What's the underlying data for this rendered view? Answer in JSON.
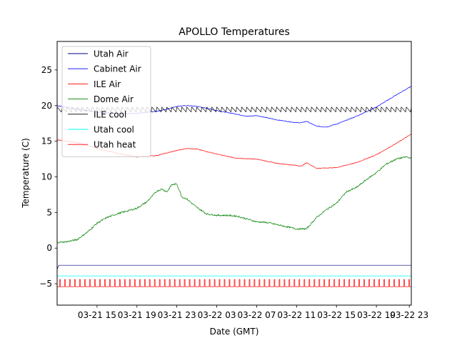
{
  "chart_data": {
    "type": "line",
    "title": "APOLLO Temperatures",
    "xlabel": "Date (GMT)",
    "ylabel": "Temperature (C)",
    "xlim": [
      0,
      35.5
    ],
    "ylim": [
      -8,
      29
    ],
    "x_unit": "hours since 03-21 11:00 GMT",
    "xticks": [
      {
        "value": 4,
        "label": "03-21 15"
      },
      {
        "value": 8,
        "label": "03-21 19"
      },
      {
        "value": 12,
        "label": "03-21 23"
      },
      {
        "value": 16,
        "label": "03-22 03"
      },
      {
        "value": 20,
        "label": "03-22 07"
      },
      {
        "value": 24,
        "label": "03-22 11"
      },
      {
        "value": 28,
        "label": "03-22 15"
      },
      {
        "value": 32,
        "label": "03-22 19"
      },
      {
        "value": 35.3,
        "label": "03-22 23"
      }
    ],
    "yticks": [
      {
        "value": -5,
        "label": "−5"
      },
      {
        "value": 0,
        "label": "0"
      },
      {
        "value": 5,
        "label": "5"
      },
      {
        "value": 10,
        "label": "10"
      },
      {
        "value": 15,
        "label": "15"
      },
      {
        "value": 20,
        "label": "20"
      },
      {
        "value": 25,
        "label": "25"
      }
    ],
    "legend_position": "top-left",
    "series": [
      {
        "name": "Utah Air",
        "color": "#000080",
        "x": [
          0,
          0.1,
          0.2,
          0.4,
          35.5
        ],
        "y": [
          -3.0,
          -2.6,
          -2.4,
          -2.4,
          -2.4
        ]
      },
      {
        "name": "Cabinet Air",
        "color": "#0000ff",
        "x": [
          0,
          2,
          4,
          6,
          8,
          10,
          11,
          12,
          13,
          14,
          16,
          18,
          19,
          20,
          22,
          24,
          24.5,
          25,
          26,
          27,
          28,
          30,
          32,
          34,
          35.5
        ],
        "y": [
          20.0,
          19.5,
          19.1,
          18.9,
          18.9,
          19.2,
          19.5,
          19.9,
          20.0,
          19.9,
          19.3,
          18.8,
          18.5,
          18.6,
          18.0,
          17.6,
          17.6,
          17.8,
          17.1,
          17.0,
          17.4,
          18.5,
          19.8,
          21.5,
          22.7
        ]
      },
      {
        "name": "ILE Air",
        "color": "#ff0000",
        "x": [
          0,
          2,
          4,
          6,
          8,
          10,
          12,
          13,
          14,
          16,
          18,
          20,
          22,
          24,
          24.5,
          25,
          26,
          28,
          30,
          32,
          34,
          35.5
        ],
        "y": [
          15.2,
          14.8,
          14.0,
          13.3,
          12.8,
          13.0,
          13.7,
          14.0,
          13.9,
          13.2,
          12.6,
          12.5,
          11.9,
          11.6,
          11.5,
          12.0,
          11.2,
          11.3,
          12.0,
          13.1,
          14.7,
          16.0
        ]
      },
      {
        "name": "Dome Air",
        "color": "#008000",
        "x": [
          0,
          1,
          2,
          3,
          4,
          5,
          6,
          7,
          8,
          9,
          10,
          10.5,
          11,
          11.5,
          12,
          12.5,
          13,
          14,
          15,
          16,
          17,
          18,
          19,
          20,
          21,
          22,
          23,
          24,
          25,
          26,
          27,
          28,
          29,
          30,
          31,
          32,
          33,
          34,
          35,
          35.5
        ],
        "y": [
          0.8,
          0.9,
          1.2,
          2.2,
          3.5,
          4.3,
          4.8,
          5.2,
          5.6,
          6.5,
          8.0,
          8.3,
          7.9,
          8.9,
          9.0,
          7.2,
          6.9,
          5.7,
          4.8,
          4.6,
          4.6,
          4.5,
          4.1,
          3.7,
          3.6,
          3.3,
          3.0,
          2.7,
          2.7,
          4.3,
          5.4,
          6.3,
          7.9,
          8.5,
          9.6,
          10.6,
          11.8,
          12.5,
          12.8,
          12.6
        ]
      },
      {
        "name": "ILE cool",
        "color": "#000000",
        "style": "sawtooth",
        "x_start": 0,
        "x_end": 35.5,
        "low": 19.1,
        "high": 19.8,
        "period_hours": 0.5
      },
      {
        "name": "Utah cool",
        "color": "#00ffff",
        "x": [
          0,
          35.5
        ],
        "y": [
          -3.9,
          -3.9
        ]
      },
      {
        "name": "Utah heat",
        "color": "#ff0000",
        "style": "pulses",
        "x_start": 0,
        "x_end": 35.5,
        "low": -5.4,
        "high": -4.4,
        "period_hours": 0.5
      }
    ]
  }
}
